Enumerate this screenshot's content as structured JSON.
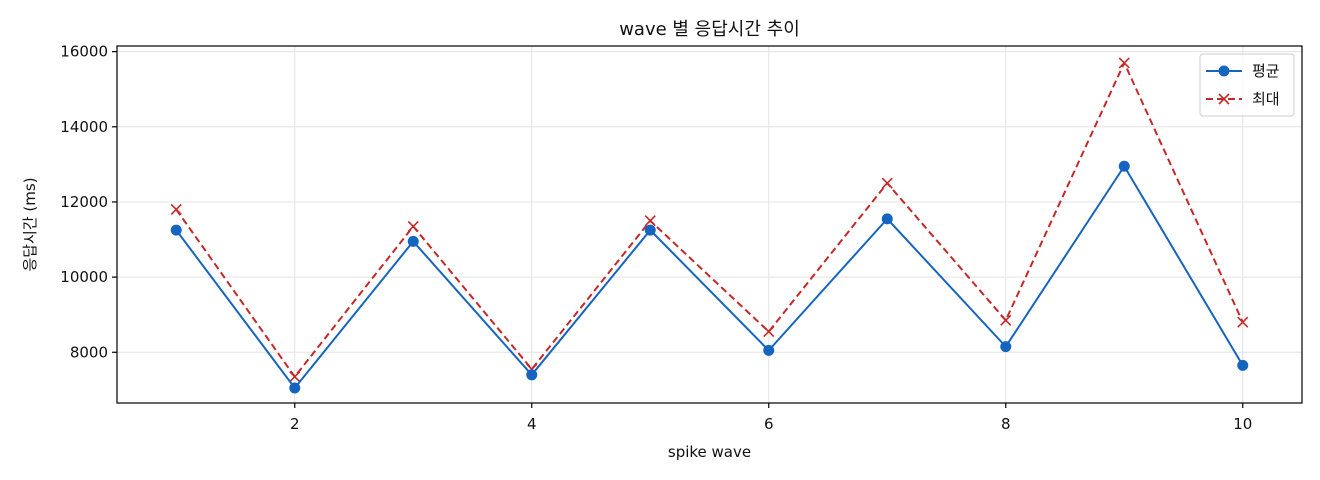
{
  "chart_data": {
    "type": "line",
    "title": "wave 별 응답시간 추이",
    "xlabel": "spike wave",
    "ylabel": "응답시간 (ms)",
    "xlim": [
      0.5,
      10.5
    ],
    "ylim": [
      6650,
      16150
    ],
    "x_ticks": [
      2,
      4,
      6,
      8,
      10
    ],
    "y_ticks": [
      8000,
      10000,
      12000,
      14000,
      16000
    ],
    "grid": true,
    "legend_position": "top-right",
    "x": [
      1,
      2,
      3,
      4,
      5,
      6,
      7,
      8,
      9,
      10
    ],
    "series": [
      {
        "name": "평균",
        "color": "#1565c0",
        "line_style": "solid",
        "marker": "circle",
        "values": [
          11250,
          7050,
          10950,
          7400,
          11250,
          8050,
          11550,
          8150,
          12950,
          7650
        ]
      },
      {
        "name": "최대",
        "color": "#c62828",
        "line_style": "dashed",
        "marker": "x",
        "values": [
          11800,
          7350,
          11350,
          7550,
          11500,
          8550,
          12500,
          8850,
          15700,
          8800
        ]
      }
    ]
  }
}
